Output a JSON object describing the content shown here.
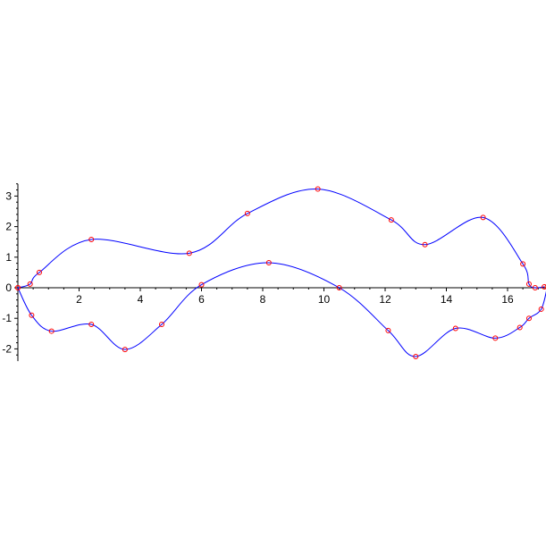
{
  "chart_data": {
    "type": "line",
    "title": "",
    "xlabel": "",
    "ylabel": "",
    "xlim": [
      0,
      17.3
    ],
    "ylim": [
      -2.4,
      3.4
    ],
    "grid": false,
    "legend": "none",
    "x_ticks": [
      0,
      2,
      4,
      6,
      8,
      10,
      12,
      14,
      16
    ],
    "y_ticks": [
      -2,
      -1,
      0,
      1,
      2,
      3
    ],
    "x_tick_labels": [
      "2",
      "4",
      "6",
      "8",
      "10",
      "12",
      "14",
      "16"
    ],
    "y_tick_labels": [
      "-2",
      "-1",
      "0",
      "1",
      "2",
      "3"
    ],
    "curve_color": "#0000ff",
    "marker_color": "#ff0000",
    "series": [
      {
        "marker": "circle",
        "points": [
          [
            0,
            0
          ],
          [
            0.4,
            0.12
          ],
          [
            0.7,
            0.5
          ],
          [
            2.4,
            1.58
          ],
          [
            5.6,
            1.13
          ],
          [
            7.5,
            2.43
          ],
          [
            9.8,
            3.23
          ],
          [
            12.2,
            2.22
          ],
          [
            13.3,
            1.41
          ],
          [
            15.2,
            2.3
          ],
          [
            16.5,
            0.78
          ],
          [
            16.7,
            0.12
          ],
          [
            16.9,
            0
          ],
          [
            17.2,
            0.03
          ]
        ]
      },
      {
        "marker": "circle",
        "points": [
          [
            0,
            0
          ],
          [
            0.45,
            -0.9
          ],
          [
            1.1,
            -1.42
          ],
          [
            2.4,
            -1.2
          ],
          [
            3.5,
            -2.02
          ],
          [
            4.7,
            -1.2
          ],
          [
            6.0,
            0.1
          ],
          [
            8.2,
            0.82
          ],
          [
            10.5,
            0.0
          ],
          [
            12.1,
            -1.4
          ],
          [
            13.0,
            -2.25
          ],
          [
            14.3,
            -1.33
          ],
          [
            15.6,
            -1.65
          ],
          [
            16.4,
            -1.3
          ],
          [
            16.7,
            -1.0
          ],
          [
            17.1,
            -0.7
          ],
          [
            17.3,
            0.03
          ]
        ]
      }
    ]
  }
}
